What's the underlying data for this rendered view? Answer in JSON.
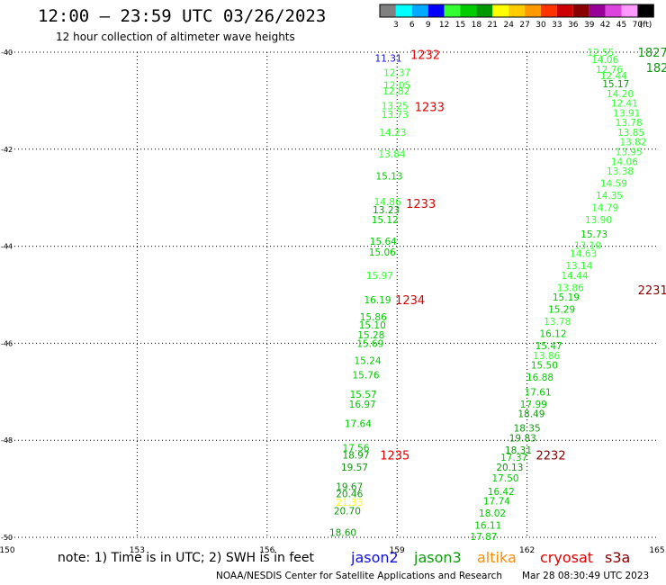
{
  "header": {
    "title": "12:00 – 23:59 UTC 03/26/2023",
    "subtitle": "12 hour collection of altimeter wave heights"
  },
  "footer": {
    "note": "note:  1) Time is in UTC; 2) SWH is in feet",
    "credit": "NOAA/NESDIS Center for Satellite Applications and Research",
    "timestamp": "Mar 28 08:30:49 UTC 2023"
  },
  "satellites": [
    {
      "name": "jason2",
      "color": "#1010dd"
    },
    {
      "name": "jason3",
      "color": "#119911"
    },
    {
      "name": "altika",
      "color": "#ff8c00"
    },
    {
      "name": "cryosat",
      "color": "#dd0000"
    },
    {
      "name": "s3a",
      "color": "#880000"
    }
  ],
  "chart_data": {
    "type": "scatter",
    "title": "12:00 – 23:59 UTC 03/26/2023",
    "subtitle": "12 hour collection of altimeter wave heights",
    "xlabel": "",
    "ylabel": "",
    "xlim": [
      150,
      165
    ],
    "ylim": [
      -50,
      -40
    ],
    "x_ticks": [
      "150",
      "153",
      "156",
      "159",
      "162",
      "165"
    ],
    "y_ticks": [
      "-40",
      "-42",
      "-44",
      "-46",
      "-48",
      "-50"
    ],
    "grid": true,
    "color_scale": {
      "unit": "(ft)",
      "bins": [
        {
          "label": "3",
          "color": "#808080"
        },
        {
          "label": "6",
          "color": "#00ffff"
        },
        {
          "label": "9",
          "color": "#00aaff"
        },
        {
          "label": "12",
          "color": "#0000ff"
        },
        {
          "label": "15",
          "color": "#33ff33"
        },
        {
          "label": "18",
          "color": "#00cc00"
        },
        {
          "label": "21",
          "color": "#009900"
        },
        {
          "label": "24",
          "color": "#ffff00"
        },
        {
          "label": "27",
          "color": "#ffcc00"
        },
        {
          "label": "30",
          "color": "#ff9900"
        },
        {
          "label": "33",
          "color": "#ff3300"
        },
        {
          "label": "36",
          "color": "#cc0000"
        },
        {
          "label": "39",
          "color": "#880000"
        },
        {
          "label": "42",
          "color": "#990099"
        },
        {
          "label": "45",
          "color": "#dd44dd"
        },
        {
          "label": "70",
          "color": "#ff99ff"
        },
        {
          "label": "",
          "color": "#000000"
        }
      ]
    },
    "series": [
      {
        "points": [
          {
            "x": 158.8,
            "y": -40.12,
            "label": "11.31",
            "color": "#1010dd"
          },
          {
            "x": 159.0,
            "y": -40.42,
            "label": "12.37",
            "color": "#33ff33"
          },
          {
            "x": 159.0,
            "y": -40.68,
            "label": "12.05",
            "color": "#33ff33"
          },
          {
            "x": 158.98,
            "y": -40.8,
            "label": "12.82",
            "color": "#33ff33"
          },
          {
            "x": 158.95,
            "y": -41.1,
            "label": "13.25",
            "color": "#33ff33"
          },
          {
            "x": 158.95,
            "y": -41.28,
            "label": "13.73",
            "color": "#33ff33"
          },
          {
            "x": 158.9,
            "y": -41.65,
            "label": "14.23",
            "color": "#33ff33"
          },
          {
            "x": 158.88,
            "y": -42.1,
            "label": "13.84",
            "color": "#33ff33"
          },
          {
            "x": 158.82,
            "y": -42.55,
            "label": "15.13",
            "color": "#00cc00"
          },
          {
            "x": 158.78,
            "y": -43.08,
            "label": "14.86",
            "color": "#33ff33"
          },
          {
            "x": 158.75,
            "y": -43.25,
            "label": "13.23",
            "color": "#119911"
          },
          {
            "x": 158.72,
            "y": -43.45,
            "label": "15.12",
            "color": "#00cc00"
          },
          {
            "x": 158.68,
            "y": -43.9,
            "label": "15.64",
            "color": "#00cc00"
          },
          {
            "x": 158.66,
            "y": -44.12,
            "label": "15.06",
            "color": "#00cc00"
          },
          {
            "x": 158.6,
            "y": -44.6,
            "label": "15.97",
            "color": "#33ff33"
          },
          {
            "x": 158.55,
            "y": -45.1,
            "label": "16.19",
            "color": "#00cc00"
          },
          {
            "x": 158.45,
            "y": -45.45,
            "label": "15.86",
            "color": "#00cc00"
          },
          {
            "x": 158.43,
            "y": -45.62,
            "label": "15.10",
            "color": "#00cc00"
          },
          {
            "x": 158.4,
            "y": -45.83,
            "label": "15.28",
            "color": "#00cc00"
          },
          {
            "x": 158.38,
            "y": -46.0,
            "label": "15.69",
            "color": "#00cc00"
          },
          {
            "x": 158.32,
            "y": -46.35,
            "label": "15.24",
            "color": "#00cc00"
          },
          {
            "x": 158.28,
            "y": -46.65,
            "label": "15.76",
            "color": "#00cc00"
          },
          {
            "x": 158.22,
            "y": -47.05,
            "label": "15.57",
            "color": "#00cc00"
          },
          {
            "x": 158.2,
            "y": -47.25,
            "label": "16.97",
            "color": "#00cc00"
          },
          {
            "x": 158.1,
            "y": -47.65,
            "label": "17.64",
            "color": "#00cc00"
          },
          {
            "x": 158.05,
            "y": -48.15,
            "label": "17.56",
            "color": "#00cc00"
          },
          {
            "x": 158.05,
            "y": -48.3,
            "label": "18.97",
            "color": "#119911"
          },
          {
            "x": 158.02,
            "y": -48.55,
            "label": "19.57",
            "color": "#119911"
          },
          {
            "x": 157.9,
            "y": -48.95,
            "label": "19.67",
            "color": "#119911"
          },
          {
            "x": 157.9,
            "y": -49.1,
            "label": "20.46",
            "color": "#119911"
          },
          {
            "x": 157.9,
            "y": -49.28,
            "label": "21.33",
            "color": "#ffff00"
          },
          {
            "x": 157.85,
            "y": -49.45,
            "label": "20.70",
            "color": "#119911"
          },
          {
            "x": 157.75,
            "y": -49.9,
            "label": "18.60",
            "color": "#119911"
          },
          {
            "x": 163.7,
            "y": -40.0,
            "label": "12.55",
            "color": "#33ff33"
          },
          {
            "x": 163.8,
            "y": -40.15,
            "label": "14.06",
            "color": "#33ff33"
          },
          {
            "x": 163.9,
            "y": -40.35,
            "label": "12.76",
            "color": "#33ff33"
          },
          {
            "x": 164.0,
            "y": -40.48,
            "label": "12.44",
            "color": "#33ff33"
          },
          {
            "x": 164.05,
            "y": -40.65,
            "label": "15.17",
            "color": "#119911"
          },
          {
            "x": 164.15,
            "y": -40.85,
            "label": "14.20",
            "color": "#33ff33"
          },
          {
            "x": 164.25,
            "y": -41.05,
            "label": "12.41",
            "color": "#33ff33"
          },
          {
            "x": 164.3,
            "y": -41.25,
            "label": "13.91",
            "color": "#33ff33"
          },
          {
            "x": 164.35,
            "y": -41.45,
            "label": "13.78",
            "color": "#33ff33"
          },
          {
            "x": 164.4,
            "y": -41.65,
            "label": "13.85",
            "color": "#33ff33"
          },
          {
            "x": 164.45,
            "y": -41.85,
            "label": "13.82",
            "color": "#33ff33"
          },
          {
            "x": 164.35,
            "y": -42.05,
            "label": "13.95",
            "color": "#33ff33"
          },
          {
            "x": 164.25,
            "y": -42.25,
            "label": "14.06",
            "color": "#33ff33"
          },
          {
            "x": 164.15,
            "y": -42.45,
            "label": "13.38",
            "color": "#33ff33"
          },
          {
            "x": 164.0,
            "y": -42.7,
            "label": "14.59",
            "color": "#33ff33"
          },
          {
            "x": 163.9,
            "y": -42.95,
            "label": "14.35",
            "color": "#33ff33"
          },
          {
            "x": 163.8,
            "y": -43.2,
            "label": "14.79",
            "color": "#33ff33"
          },
          {
            "x": 163.65,
            "y": -43.45,
            "label": "13.90",
            "color": "#33ff33"
          },
          {
            "x": 163.55,
            "y": -43.75,
            "label": "15.73",
            "color": "#00cc00"
          },
          {
            "x": 163.4,
            "y": -43.98,
            "label": "13.10",
            "color": "#33ff33"
          },
          {
            "x": 163.3,
            "y": -44.15,
            "label": "14.63",
            "color": "#33ff33"
          },
          {
            "x": 163.2,
            "y": -44.4,
            "label": "13.14",
            "color": "#33ff33"
          },
          {
            "x": 163.1,
            "y": -44.6,
            "label": "14.44",
            "color": "#33ff33"
          },
          {
            "x": 163.0,
            "y": -44.85,
            "label": "13.86",
            "color": "#33ff33"
          },
          {
            "x": 162.9,
            "y": -45.05,
            "label": "15.19",
            "color": "#00cc00"
          },
          {
            "x": 162.8,
            "y": -45.3,
            "label": "15.29",
            "color": "#00cc00"
          },
          {
            "x": 162.7,
            "y": -45.55,
            "label": "13.78",
            "color": "#33ff33"
          },
          {
            "x": 162.6,
            "y": -45.8,
            "label": "16.12",
            "color": "#00cc00"
          },
          {
            "x": 162.5,
            "y": -46.05,
            "label": "15.47",
            "color": "#00cc00"
          },
          {
            "x": 162.45,
            "y": -46.25,
            "label": "13.86",
            "color": "#33ff33"
          },
          {
            "x": 162.4,
            "y": -46.45,
            "label": "15.50",
            "color": "#00cc00"
          },
          {
            "x": 162.3,
            "y": -46.7,
            "label": "16.88",
            "color": "#00cc00"
          },
          {
            "x": 162.25,
            "y": -47.0,
            "label": "17.61",
            "color": "#00cc00"
          },
          {
            "x": 162.15,
            "y": -47.25,
            "label": "17.99",
            "color": "#00cc00"
          },
          {
            "x": 162.1,
            "y": -47.45,
            "label": "18.49",
            "color": "#119911"
          },
          {
            "x": 162.0,
            "y": -47.75,
            "label": "18.35",
            "color": "#119911"
          },
          {
            "x": 161.9,
            "y": -47.95,
            "label": "19.83",
            "color": "#119911"
          },
          {
            "x": 161.8,
            "y": -48.2,
            "label": "18.31",
            "color": "#119911"
          },
          {
            "x": 161.7,
            "y": -48.35,
            "label": "17.37",
            "color": "#00cc00"
          },
          {
            "x": 161.6,
            "y": -48.55,
            "label": "20.13",
            "color": "#119911"
          },
          {
            "x": 161.5,
            "y": -48.78,
            "label": "17.50",
            "color": "#00cc00"
          },
          {
            "x": 161.4,
            "y": -49.05,
            "label": "16.42",
            "color": "#00cc00"
          },
          {
            "x": 161.3,
            "y": -49.25,
            "label": "17.74",
            "color": "#00cc00"
          },
          {
            "x": 161.2,
            "y": -49.5,
            "label": "18.02",
            "color": "#00cc00"
          },
          {
            "x": 161.1,
            "y": -49.75,
            "label": "16.11",
            "color": "#00cc00"
          },
          {
            "x": 161.0,
            "y": -49.98,
            "label": "17.87",
            "color": "#00cc00"
          }
        ]
      }
    ],
    "time_labels": [
      {
        "x": 159.65,
        "y": -40.05,
        "label": "1232",
        "color": "#dd0000"
      },
      {
        "x": 159.75,
        "y": -41.12,
        "label": "1233",
        "color": "#dd0000"
      },
      {
        "x": 159.55,
        "y": -43.12,
        "label": "1233",
        "color": "#dd0000"
      },
      {
        "x": 159.3,
        "y": -45.1,
        "label": "1234",
        "color": "#dd0000"
      },
      {
        "x": 158.95,
        "y": -48.3,
        "label": "1235",
        "color": "#dd0000"
      },
      {
        "x": 164.9,
        "y": -40.0,
        "label": "1827",
        "color": "#119911"
      },
      {
        "x": 165.0,
        "y": -40.32,
        "label": "182",
        "color": "#119911"
      },
      {
        "x": 164.9,
        "y": -44.9,
        "label": "2231",
        "color": "#880000"
      },
      {
        "x": 162.55,
        "y": -48.3,
        "label": "2232",
        "color": "#880000"
      }
    ]
  }
}
